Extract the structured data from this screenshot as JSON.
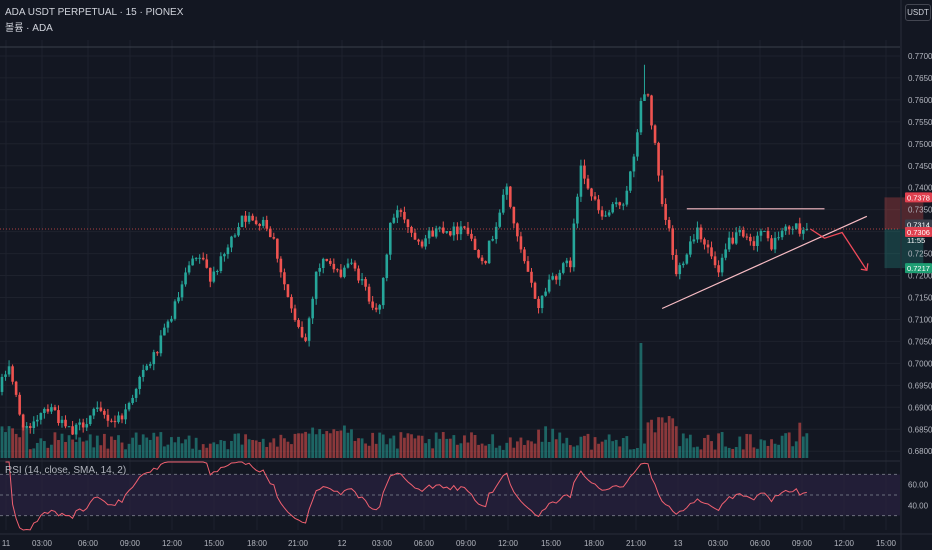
{
  "header": {
    "title": "ADA USDT PERPETUAL · 15 · PIONEX",
    "volume_label": "볼륨 · ADA",
    "currency_button": "USDT",
    "rsi_label": "RSI (14, close, SMA, 14, 2)"
  },
  "colors": {
    "background": "#131722",
    "up": "#26a69a",
    "down": "#ef5350",
    "grid": "#1e222d",
    "text": "#b2b5be",
    "rsi_line": "#f06070",
    "rsi_band": "#2a2240",
    "pattern_line": "#f8bcc4"
  },
  "chart_data": [
    {
      "type": "candlestick",
      "title": "ADA USDT PERPETUAL · 15 · PIONEX",
      "y_axis": {
        "ticks": [
          "0.7700",
          "0.7650",
          "0.7600",
          "0.7550",
          "0.7500",
          "0.7450",
          "0.7400",
          "0.7350",
          "0.7300",
          "0.7250",
          "0.7200",
          "0.7150",
          "0.7100",
          "0.7050",
          "0.7000",
          "0.6950",
          "0.6900",
          "0.6850",
          "0.6800"
        ],
        "range": [
          0.678,
          0.7725
        ]
      },
      "x_axis": {
        "ticks": [
          "11",
          "03:00",
          "06:00",
          "09:00",
          "12:00",
          "15:00",
          "18:00",
          "21:00",
          "12",
          "03:00",
          "06:00",
          "09:00",
          "12:00",
          "15:00",
          "18:00",
          "21:00",
          "13",
          "03:00",
          "06:00",
          "09:00",
          "12:00",
          "15:00"
        ]
      },
      "price_labels": {
        "top_red": "0.7378",
        "last_price": "0.7314",
        "countdown": "11:55",
        "current_red": "0.7306",
        "bottom_green": "0.7217"
      },
      "overview": {
        "open": 0.6935,
        "high": 0.768,
        "low": 0.6835,
        "close": 0.7306
      },
      "path": [
        {
          "t": 0,
          "p": 0.6935
        },
        {
          "t": 3,
          "p": 0.7
        },
        {
          "t": 6,
          "p": 0.688
        },
        {
          "t": 9,
          "p": 0.684
        },
        {
          "t": 12,
          "p": 0.6895
        },
        {
          "t": 15,
          "p": 0.6905
        },
        {
          "t": 18,
          "p": 0.686
        },
        {
          "t": 21,
          "p": 0.684
        },
        {
          "t": 24,
          "p": 0.6865
        },
        {
          "t": 27,
          "p": 0.689
        },
        {
          "t": 30,
          "p": 0.688
        },
        {
          "t": 33,
          "p": 0.687
        },
        {
          "t": 36,
          "p": 0.689
        },
        {
          "t": 39,
          "p": 0.695
        },
        {
          "t": 42,
          "p": 0.699
        },
        {
          "t": 45,
          "p": 0.703
        },
        {
          "t": 48,
          "p": 0.709
        },
        {
          "t": 51,
          "p": 0.715
        },
        {
          "t": 54,
          "p": 0.722
        },
        {
          "t": 57,
          "p": 0.724
        },
        {
          "t": 60,
          "p": 0.72
        },
        {
          "t": 63,
          "p": 0.723
        },
        {
          "t": 66,
          "p": 0.728
        },
        {
          "t": 69,
          "p": 0.734
        },
        {
          "t": 72,
          "p": 0.732
        },
        {
          "t": 75,
          "p": 0.733
        },
        {
          "t": 78,
          "p": 0.728
        },
        {
          "t": 81,
          "p": 0.718
        },
        {
          "t": 84,
          "p": 0.709
        },
        {
          "t": 87,
          "p": 0.705
        },
        {
          "t": 90,
          "p": 0.721
        },
        {
          "t": 93,
          "p": 0.724
        },
        {
          "t": 96,
          "p": 0.72
        },
        {
          "t": 99,
          "p": 0.723
        },
        {
          "t": 102,
          "p": 0.72
        },
        {
          "t": 105,
          "p": 0.715
        },
        {
          "t": 108,
          "p": 0.712
        },
        {
          "t": 111,
          "p": 0.732
        },
        {
          "t": 114,
          "p": 0.735
        },
        {
          "t": 117,
          "p": 0.73
        },
        {
          "t": 120,
          "p": 0.728
        },
        {
          "t": 123,
          "p": 0.73
        },
        {
          "t": 126,
          "p": 0.731
        },
        {
          "t": 129,
          "p": 0.73
        },
        {
          "t": 132,
          "p": 0.732
        },
        {
          "t": 135,
          "p": 0.726
        },
        {
          "t": 138,
          "p": 0.724
        },
        {
          "t": 141,
          "p": 0.732
        },
        {
          "t": 144,
          "p": 0.74
        },
        {
          "t": 147,
          "p": 0.728
        },
        {
          "t": 150,
          "p": 0.72
        },
        {
          "t": 153,
          "p": 0.713
        },
        {
          "t": 156,
          "p": 0.719
        },
        {
          "t": 159,
          "p": 0.721
        },
        {
          "t": 162,
          "p": 0.723
        },
        {
          "t": 165,
          "p": 0.746
        },
        {
          "t": 168,
          "p": 0.738
        },
        {
          "t": 171,
          "p": 0.733
        },
        {
          "t": 174,
          "p": 0.735
        },
        {
          "t": 177,
          "p": 0.737
        },
        {
          "t": 180,
          "p": 0.746
        },
        {
          "t": 182,
          "p": 0.76
        },
        {
          "t": 184,
          "p": 0.761
        },
        {
          "t": 186,
          "p": 0.749
        },
        {
          "t": 188,
          "p": 0.735
        },
        {
          "t": 190,
          "p": 0.73
        },
        {
          "t": 192,
          "p": 0.72
        },
        {
          "t": 195,
          "p": 0.726
        },
        {
          "t": 198,
          "p": 0.731
        },
        {
          "t": 201,
          "p": 0.726
        },
        {
          "t": 204,
          "p": 0.72
        },
        {
          "t": 207,
          "p": 0.728
        },
        {
          "t": 210,
          "p": 0.729
        },
        {
          "t": 213,
          "p": 0.727
        },
        {
          "t": 216,
          "p": 0.73
        },
        {
          "t": 219,
          "p": 0.727
        },
        {
          "t": 222,
          "p": 0.73
        },
        {
          "t": 225,
          "p": 0.731
        },
        {
          "t": 228,
          "p": 0.7306
        }
      ],
      "volume": {
        "baseline_bars": 232,
        "spike_note": "largest volume bar near 21:00 on day 12"
      },
      "rsi": {
        "upper_band": 70,
        "lower_band": 30,
        "ticks": [
          "60.00",
          "40.00"
        ],
        "range": [
          16,
          82
        ]
      },
      "annotations": [
        {
          "type": "resistance",
          "label": "horizontal line",
          "from_t": 194,
          "to_t": 233,
          "price": 0.7352
        },
        {
          "type": "support",
          "label": "rising trendline",
          "from_t": 187,
          "from_p": 0.7125,
          "to_t": 245,
          "to_p": 0.7335
        },
        {
          "type": "projection",
          "label": "red arrow down",
          "points": [
            [
              229,
              0.7306
            ],
            [
              233,
              0.7285
            ],
            [
              238,
              0.7298
            ],
            [
              245,
              0.7212
            ]
          ]
        },
        {
          "type": "position",
          "label": "short position box",
          "from_t": 250,
          "to_t": 261,
          "entry": 0.7306,
          "stop": 0.7378,
          "target": 0.7217
        }
      ]
    }
  ]
}
